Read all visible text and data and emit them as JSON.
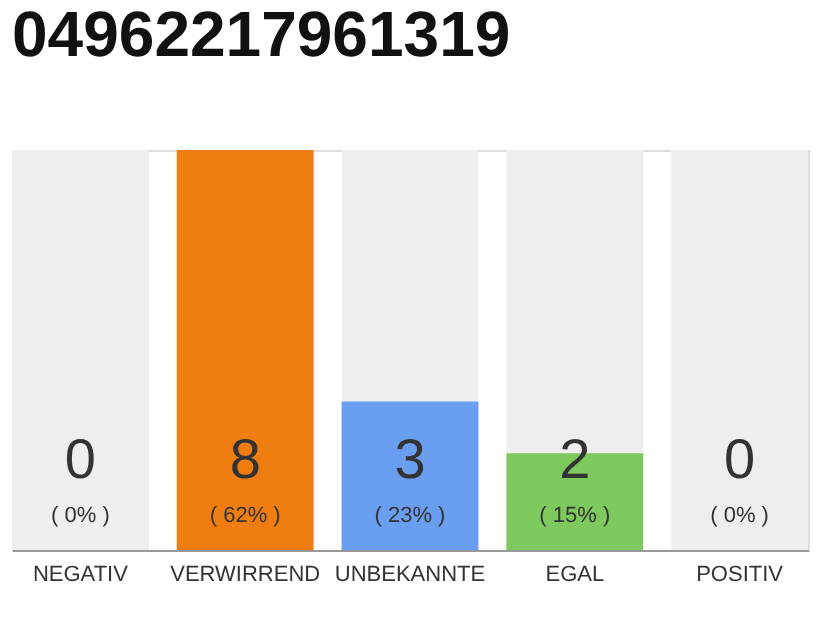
{
  "chart_data": {
    "type": "bar",
    "title": "04962217961319",
    "categories": [
      "NEGATIV",
      "VERWIRREND",
      "UNBEKANNTE",
      "EGAL",
      "POSITIV"
    ],
    "values": [
      0,
      62,
      23,
      15,
      0
    ],
    "colors": [
      "#e05a4a",
      "#f07d10",
      "#6a9ef0",
      "#7dc95e",
      "#4caf50"
    ],
    "value_labels": [
      "( 0% )",
      "( 62% )",
      "( 23% )",
      "( 15% )",
      "( 0% )"
    ],
    "annotations": [
      "0",
      "8",
      "3",
      "2",
      "0"
    ],
    "bands": [
      {
        "axis": "x",
        "from": "NEGATIV",
        "to": "NEGATIV",
        "color": "#eeeeee"
      },
      {
        "axis": "x",
        "from": "UNBEKANNTE",
        "to": "UNBEKANNTE",
        "color": "#eeeeee"
      },
      {
        "axis": "x",
        "from": "EGAL",
        "to": "EGAL",
        "color": "#eeeeee"
      },
      {
        "axis": "x",
        "from": "POSITIV",
        "to": "POSITIV",
        "color": "#eeeeee"
      }
    ],
    "grid": false
  }
}
